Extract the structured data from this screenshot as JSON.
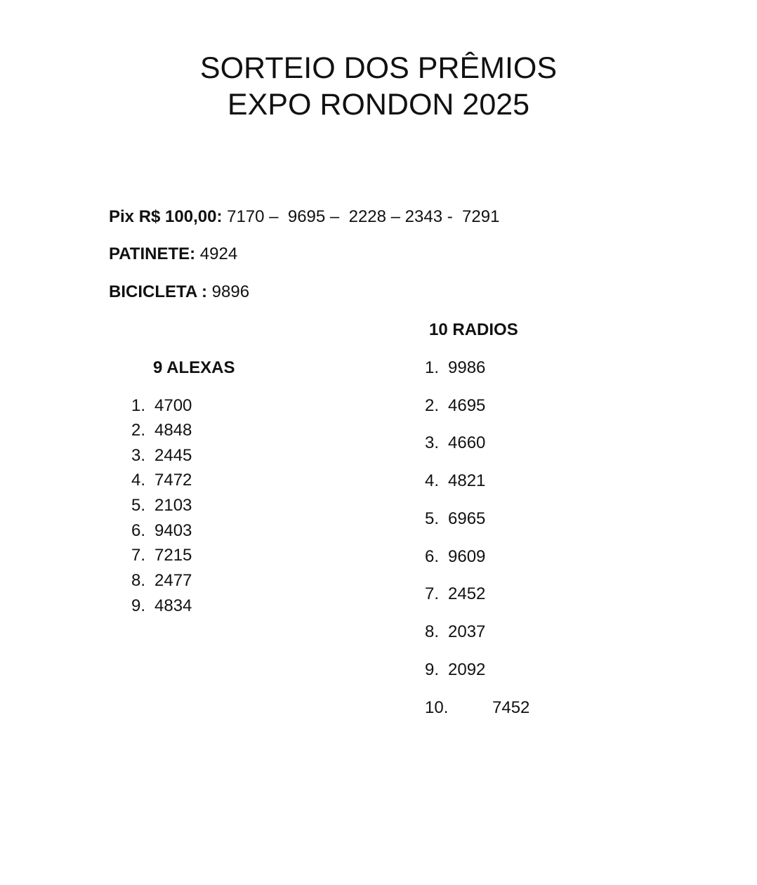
{
  "title": {
    "line1": "SORTEIO DOS PRÊMIOS",
    "line2": "EXPO RONDON 2025"
  },
  "pix": {
    "label": "Pix R$ 100,00:",
    "value": " 7170 –  9695 –  2228 – 2343 -  7291"
  },
  "patinete": {
    "label": "PATINETE:",
    "value": " 4924"
  },
  "bicicleta": {
    "label": "BICICLETA :",
    "value": " 9896"
  },
  "alexas": {
    "heading": "9 ALEXAS",
    "items": [
      {
        "n": "1.",
        "v": "4700"
      },
      {
        "n": "2.",
        "v": "4848"
      },
      {
        "n": "3.",
        "v": "2445"
      },
      {
        "n": "4.",
        "v": "7472"
      },
      {
        "n": "5.",
        "v": "2103"
      },
      {
        "n": "6.",
        "v": "9403"
      },
      {
        "n": "7.",
        "v": "7215"
      },
      {
        "n": "8.",
        "v": "2477"
      },
      {
        "n": "9.",
        "v": "4834"
      }
    ]
  },
  "radios": {
    "heading": "10 RADIOS",
    "items": [
      {
        "n": "1.",
        "v": "9986"
      },
      {
        "n": "2.",
        "v": "4695"
      },
      {
        "n": "3.",
        "v": "4660"
      },
      {
        "n": "4.",
        "v": "4821"
      },
      {
        "n": "5.",
        "v": "6965"
      },
      {
        "n": "6.",
        "v": "9609"
      },
      {
        "n": "7.",
        "v": "2452"
      },
      {
        "n": "8.",
        "v": "2037"
      },
      {
        "n": "9.",
        "v": "2092"
      },
      {
        "n": "10.",
        "v": "7452"
      }
    ]
  }
}
